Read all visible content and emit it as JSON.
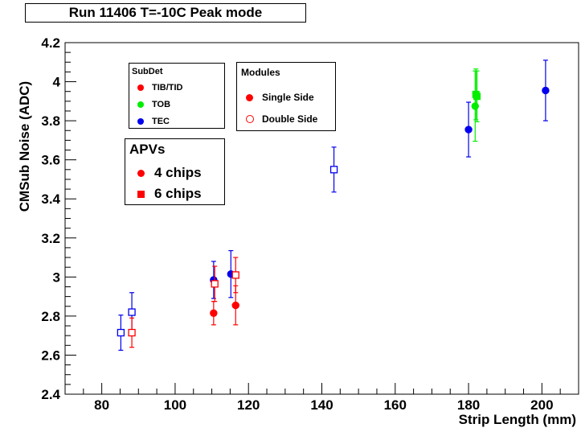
{
  "title": "Run 11406 T=-10C Peak mode",
  "legend_subdet": {
    "header": "SubDet",
    "items": [
      {
        "label": "TIB/TID",
        "color": "#ff0000"
      },
      {
        "label": "TOB",
        "color": "#00ee00"
      },
      {
        "label": "TEC",
        "color": "#0000ee"
      }
    ]
  },
  "legend_modules": {
    "header": "Modules",
    "items": [
      {
        "label": "Single Side",
        "marker": "filled-circle",
        "color": "#ff0000"
      },
      {
        "label": "Double Side",
        "marker": "open-circle",
        "color": "#ff0000"
      }
    ]
  },
  "legend_apvs": {
    "header": "APVs",
    "items": [
      {
        "label": "4 chips",
        "marker": "filled-circle",
        "color": "#ff0000"
      },
      {
        "label": "6 chips",
        "marker": "filled-square",
        "color": "#ff0000"
      }
    ]
  },
  "chart_data": {
    "type": "scatter",
    "title": "Run 11406 T=-10C Peak mode",
    "xlabel": "Strip Length (mm)",
    "ylabel": "CMSub Noise (ADC)",
    "xlim": [
      70,
      210
    ],
    "ylim": [
      2.4,
      4.2
    ],
    "x_ticks": [
      "80",
      "100",
      "120",
      "140",
      "160",
      "180",
      "200"
    ],
    "y_ticks": [
      "2.4",
      "2.6",
      "2.8",
      "3",
      "3.2",
      "3.4",
      "3.6",
      "3.8",
      "4",
      "4.2"
    ],
    "grid": false,
    "points": [
      {
        "subdet": "TEC",
        "x": 85.2,
        "y": 2.715,
        "err": 0.09,
        "marker": "open-square",
        "color": "#0000ee"
      },
      {
        "subdet": "TEC",
        "x": 88.2,
        "y": 2.82,
        "err": 0.1,
        "marker": "open-square",
        "color": "#0000ee"
      },
      {
        "subdet": "TIB/TID",
        "x": 88.2,
        "y": 2.715,
        "err": 0.075,
        "marker": "open-square",
        "color": "#ff0000"
      },
      {
        "subdet": "TIB/TID",
        "x": 110.5,
        "y": 2.815,
        "err": 0.06,
        "marker": "filled-circle",
        "color": "#ff0000"
      },
      {
        "subdet": "TEC",
        "x": 110.5,
        "y": 2.985,
        "err": 0.095,
        "marker": "filled-circle",
        "color": "#0000ee"
      },
      {
        "subdet": "TIB/TID",
        "x": 110.8,
        "y": 2.965,
        "err": 0.09,
        "marker": "open-square",
        "color": "#ff0000"
      },
      {
        "subdet": "TEC",
        "x": 115.2,
        "y": 3.015,
        "err": 0.12,
        "marker": "filled-circle",
        "color": "#0000ee"
      },
      {
        "subdet": "TIB/TID",
        "x": 116.5,
        "y": 2.855,
        "err": 0.1,
        "marker": "filled-circle",
        "color": "#ff0000"
      },
      {
        "subdet": "TIB/TID",
        "x": 116.5,
        "y": 3.01,
        "err": 0.09,
        "marker": "open-square",
        "color": "#ff0000"
      },
      {
        "subdet": "TEC",
        "x": 143.3,
        "y": 3.55,
        "err": 0.115,
        "marker": "open-square",
        "color": "#0000ee"
      },
      {
        "subdet": "TEC",
        "x": 180.0,
        "y": 3.755,
        "err": 0.14,
        "marker": "filled-circle",
        "color": "#0000ee"
      },
      {
        "subdet": "TOB",
        "x": 181.8,
        "y": 3.875,
        "err": 0.18,
        "marker": "filled-circle",
        "color": "#00ee00"
      },
      {
        "subdet": "TOB",
        "x": 182.0,
        "y": 3.935,
        "err": 0.13,
        "marker": "filled-square",
        "color": "#00ee00"
      },
      {
        "subdet": "TOB",
        "x": 182.3,
        "y": 3.925,
        "err": 0.13,
        "marker": "filled-square",
        "color": "#00ee00"
      },
      {
        "subdet": "TEC",
        "x": 201.0,
        "y": 3.955,
        "err": 0.155,
        "marker": "filled-circle",
        "color": "#0000ee"
      }
    ]
  }
}
